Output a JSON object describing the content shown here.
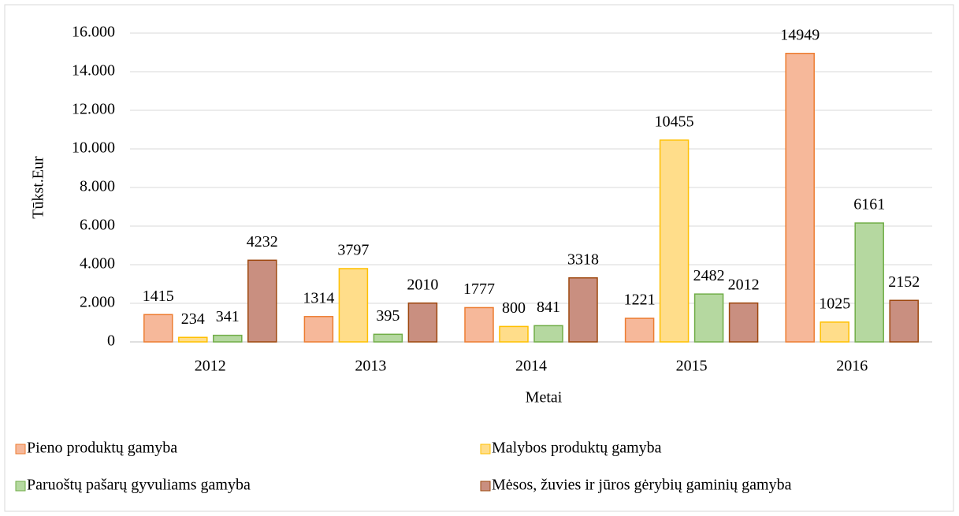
{
  "chart_data": {
    "type": "bar",
    "categories": [
      "2012",
      "2013",
      "2014",
      "2015",
      "2016"
    ],
    "series": [
      {
        "name": "Pieno produktų gamyba",
        "color": "#f6b89a",
        "edgecolor": "#ed7d31",
        "values": [
          1415,
          1314,
          1777,
          1221,
          14949
        ]
      },
      {
        "name": "Malybos produktų gamyba",
        "color": "#ffdd8a",
        "edgecolor": "#ffc000",
        "values": [
          234,
          3797,
          800,
          10455,
          1025
        ]
      },
      {
        "name": "Paruoštų pašarų gyvuliams gamyba",
        "color": "#b5d8a0",
        "edgecolor": "#70ad47",
        "values": [
          341,
          395,
          841,
          2482,
          6161
        ]
      },
      {
        "name": "Mėsos, žuvies ir jūros gėrybių gaminių gamyba",
        "color": "#c98f80",
        "edgecolor": "#9e480e",
        "values": [
          4232,
          2010,
          3318,
          2012,
          2152
        ]
      }
    ],
    "ylabel": "Tūkst.Eur",
    "xlabel": "Metai",
    "ylim": [
      0,
      16000
    ],
    "yticks": [
      0,
      {
        "value": 2000,
        "label": "2.000"
      },
      {
        "value": 4000,
        "label": "4.000"
      },
      {
        "value": 6000,
        "label": "6.000"
      },
      {
        "value": 8000,
        "label": "8.000"
      },
      {
        "value": 10000,
        "label": "10.000"
      },
      {
        "value": 12000,
        "label": "12.000"
      },
      {
        "value": 14000,
        "label": "14.000"
      },
      {
        "value": 16000,
        "label": "16.000"
      }
    ],
    "grid": true,
    "legend": "bottom"
  }
}
